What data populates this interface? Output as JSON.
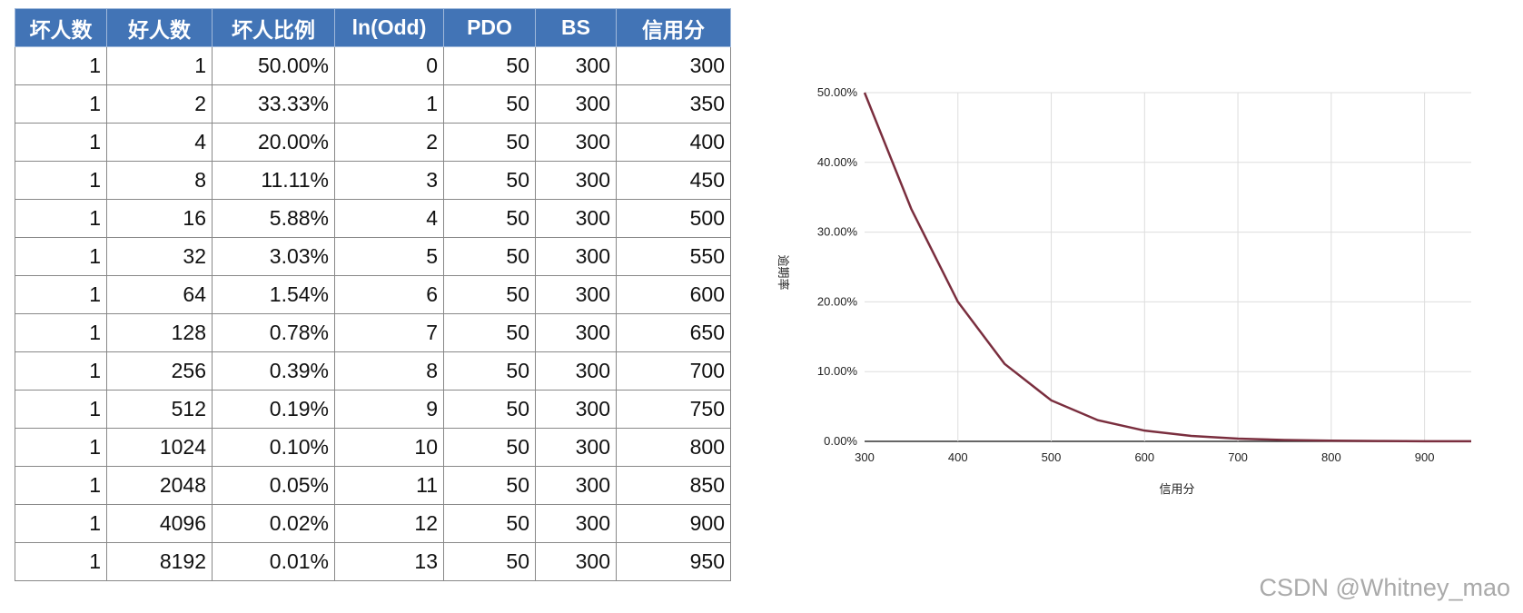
{
  "table": {
    "header": [
      "坏人数",
      "好人数",
      "坏人比例",
      "ln(Odd)",
      "PDO",
      "BS",
      "信用分"
    ],
    "rows": [
      [
        "1",
        "1",
        "50.00%",
        "0",
        "50",
        "300",
        "300"
      ],
      [
        "1",
        "2",
        "33.33%",
        "1",
        "50",
        "300",
        "350"
      ],
      [
        "1",
        "4",
        "20.00%",
        "2",
        "50",
        "300",
        "400"
      ],
      [
        "1",
        "8",
        "11.11%",
        "3",
        "50",
        "300",
        "450"
      ],
      [
        "1",
        "16",
        "5.88%",
        "4",
        "50",
        "300",
        "500"
      ],
      [
        "1",
        "32",
        "3.03%",
        "5",
        "50",
        "300",
        "550"
      ],
      [
        "1",
        "64",
        "1.54%",
        "6",
        "50",
        "300",
        "600"
      ],
      [
        "1",
        "128",
        "0.78%",
        "7",
        "50",
        "300",
        "650"
      ],
      [
        "1",
        "256",
        "0.39%",
        "8",
        "50",
        "300",
        "700"
      ],
      [
        "1",
        "512",
        "0.19%",
        "9",
        "50",
        "300",
        "750"
      ],
      [
        "1",
        "1024",
        "0.10%",
        "10",
        "50",
        "300",
        "800"
      ],
      [
        "1",
        "2048",
        "0.05%",
        "11",
        "50",
        "300",
        "850"
      ],
      [
        "1",
        "4096",
        "0.02%",
        "12",
        "50",
        "300",
        "900"
      ],
      [
        "1",
        "8192",
        "0.01%",
        "13",
        "50",
        "300",
        "950"
      ]
    ]
  },
  "chart_data": {
    "type": "line",
    "x_label": "信用分",
    "y_label": "逾期率",
    "x": [
      300,
      350,
      400,
      450,
      500,
      550,
      600,
      650,
      700,
      750,
      800,
      850,
      900,
      950
    ],
    "series": [
      {
        "name": "逾期率",
        "color": "#7a2e3e",
        "values": [
          50,
          33.33,
          20,
          11.11,
          5.88,
          3.03,
          1.54,
          0.78,
          0.39,
          0.19,
          0.1,
          0.05,
          0.02,
          0.01
        ]
      }
    ],
    "xlim": [
      300,
      950
    ],
    "ylim": [
      0,
      50
    ],
    "xticks": [
      300,
      400,
      500,
      600,
      700,
      800,
      900
    ],
    "yticks": [
      {
        "value": 0,
        "label": "0.00%"
      },
      {
        "value": 10,
        "label": "10.00%"
      },
      {
        "value": 20,
        "label": "20.00%"
      },
      {
        "value": 30,
        "label": "30.00%"
      },
      {
        "value": 40,
        "label": "40.00%"
      },
      {
        "value": 50,
        "label": "50.00%"
      }
    ],
    "grid": true
  },
  "watermark": "CSDN @Whitney_mao"
}
